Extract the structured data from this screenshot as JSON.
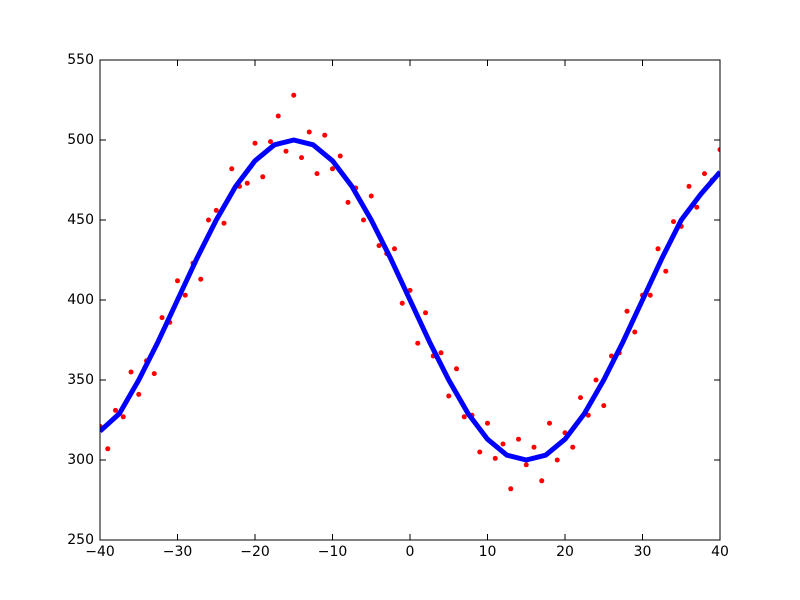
{
  "chart_data": {
    "type": "scatter",
    "xlim": [
      -40,
      40
    ],
    "ylim": [
      250,
      550
    ],
    "xticks": [
      {
        "value": -40,
        "label": "−40"
      },
      {
        "value": -30,
        "label": "−30"
      },
      {
        "value": -20,
        "label": "−20"
      },
      {
        "value": -10,
        "label": "−10"
      },
      0,
      10,
      20,
      30,
      40
    ],
    "yticks": [
      250,
      300,
      350,
      400,
      450,
      500,
      550
    ],
    "series": [
      {
        "type": "scatter",
        "color": "#ff0000",
        "x": [
          -40,
          -39,
          -38,
          -37,
          -36,
          -35,
          -34,
          -33,
          -32,
          -31,
          -30,
          -29,
          -28,
          -27,
          -26,
          -25,
          -24,
          -23,
          -22,
          -21,
          -20,
          -19,
          -18,
          -17,
          -16,
          -15,
          -14,
          -13,
          -12,
          -11,
          -10,
          -9,
          -8,
          -7,
          -6,
          -5,
          -4,
          -3,
          -2,
          -1,
          0,
          1,
          2,
          3,
          4,
          5,
          6,
          7,
          8,
          9,
          10,
          11,
          12,
          13,
          14,
          15,
          16,
          17,
          18,
          19,
          20,
          21,
          22,
          23,
          24,
          25,
          26,
          27,
          28,
          29,
          30,
          31,
          32,
          33,
          34,
          35,
          36,
          37,
          38,
          39,
          40
        ],
        "values": [
          321,
          307,
          331,
          327,
          355,
          341,
          362,
          354,
          389,
          386,
          412,
          403,
          423,
          413,
          450,
          456,
          448,
          482,
          471,
          473,
          498,
          477,
          499,
          515,
          493,
          528,
          489,
          505,
          479,
          503,
          482,
          490,
          461,
          470,
          450,
          465,
          434,
          429,
          432,
          398,
          406,
          373,
          392,
          365,
          367,
          340,
          357,
          327,
          328,
          305,
          323,
          301,
          310,
          282,
          313,
          297,
          308,
          287,
          323,
          300,
          317,
          308,
          339,
          328,
          350,
          334,
          365,
          367,
          393,
          380,
          403,
          403,
          432,
          418,
          449,
          446,
          471,
          458,
          479,
          475,
          494
        ]
      },
      {
        "type": "line",
        "color": "#0000ff",
        "x": [
          -40,
          -37.5,
          -35,
          -32.5,
          -30,
          -27.5,
          -25,
          -22.5,
          -20,
          -17.5,
          -15,
          -12.5,
          -10,
          -7.5,
          -5,
          -2.5,
          0,
          2.5,
          5,
          7.5,
          10,
          12.5,
          15,
          17.5,
          20,
          22.5,
          25,
          27.5,
          30,
          32.5,
          35,
          37.5,
          40
        ],
        "values": [
          318,
          329,
          350,
          374,
          400,
          426,
          450,
          471,
          487,
          497,
          500,
          497,
          487,
          471,
          450,
          426,
          400,
          374,
          350,
          329,
          313,
          303,
          300,
          303,
          313,
          329,
          350,
          374,
          400,
          426,
          450,
          466,
          480
        ]
      }
    ]
  }
}
